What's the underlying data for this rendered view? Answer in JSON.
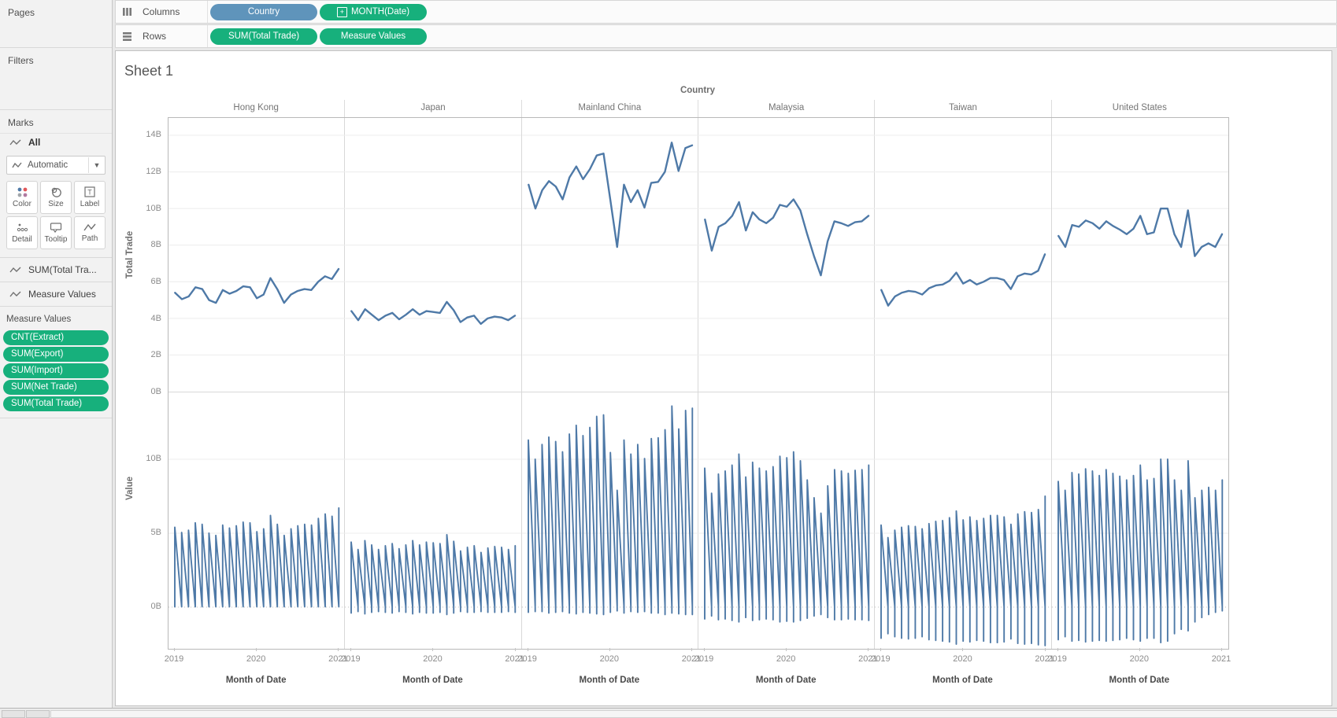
{
  "shelves": {
    "columns_label": "Columns",
    "rows_label": "Rows",
    "columns_pills": [
      {
        "label": "Country",
        "kind": "dimension"
      },
      {
        "label": "MONTH(Date)",
        "kind": "continuous-date"
      }
    ],
    "rows_pills": [
      {
        "label": "SUM(Total Trade)",
        "kind": "measure"
      },
      {
        "label": "Measure Values",
        "kind": "measure"
      }
    ]
  },
  "sidebar": {
    "pages_label": "Pages",
    "filters_label": "Filters",
    "marks": {
      "title": "Marks",
      "all_label": "All",
      "mark_type": "Automatic",
      "buttons": [
        {
          "label": "Color"
        },
        {
          "label": "Size"
        },
        {
          "label": "Label"
        },
        {
          "label": "Detail"
        },
        {
          "label": "Tooltip"
        },
        {
          "label": "Path"
        }
      ]
    },
    "layers": [
      {
        "label": "SUM(Total Tra..."
      },
      {
        "label": "Measure Values"
      }
    ],
    "measure_values": {
      "title": "Measure Values",
      "pills": [
        "CNT(Extract)",
        "SUM(Export)",
        "SUM(Import)",
        "SUM(Net Trade)",
        "SUM(Total Trade)"
      ]
    }
  },
  "sheet": {
    "title": "Sheet 1",
    "column_field_label": "Country",
    "x_axis_title": "Month of Date",
    "row_axes": [
      {
        "title": "Total Trade"
      },
      {
        "title": "Value"
      }
    ]
  },
  "chart_data": {
    "type": "line",
    "facet_field": "Country",
    "facets": [
      "Hong Kong",
      "Japan",
      "Mainland China",
      "Malaysia",
      "Taiwan",
      "United States"
    ],
    "x_field": "Month of Date",
    "x_months": [
      "2019-01",
      "2019-02",
      "2019-03",
      "2019-04",
      "2019-05",
      "2019-06",
      "2019-07",
      "2019-08",
      "2019-09",
      "2019-10",
      "2019-11",
      "2019-12",
      "2020-01",
      "2020-02",
      "2020-03",
      "2020-04",
      "2020-05",
      "2020-06",
      "2020-07",
      "2020-08",
      "2020-09",
      "2020-10",
      "2020-11",
      "2020-12",
      "2021-01"
    ],
    "x_tick_labels": [
      "2019",
      "2020",
      "2021"
    ],
    "grid": true,
    "line_color": "#4e79a7",
    "rows": [
      {
        "y_field": "SUM(Total Trade)",
        "axis_title": "Total Trade",
        "units": "B",
        "ylim": [
          0,
          14.9
        ],
        "yticks": [
          0,
          2,
          4,
          6,
          8,
          10,
          12,
          14
        ]
      },
      {
        "y_field": "Measure Values",
        "axis_title": "Value",
        "units": "B",
        "ylim": [
          -2.8,
          14.5
        ],
        "yticks": [
          0,
          5,
          10
        ],
        "measures_in_draw_order": [
          "CNT(Extract)",
          "SUM(Export)",
          "SUM(Import)",
          "SUM(Net Trade)",
          "SUM(Total Trade)"
        ],
        "derivation": "CNT(Extract) ~ 0 on billions scale; Export = (Total+Net)/2; Import = (Total-Net)/2"
      }
    ],
    "series": [
      {
        "country": "Hong Kong",
        "total_trade_B": [
          5.4,
          5.05,
          5.2,
          5.7,
          5.6,
          5.0,
          4.85,
          5.55,
          5.35,
          5.5,
          5.75,
          5.7,
          5.1,
          5.3,
          6.2,
          5.6,
          4.85,
          5.3,
          5.5,
          5.6,
          5.55,
          6.0,
          6.3,
          6.15,
          6.7
        ],
        "net_trade_B": [
          0.2,
          0.15,
          0.15,
          0.2,
          0.2,
          0.1,
          0.1,
          0.2,
          0.15,
          0.2,
          0.2,
          0.2,
          0.15,
          0.15,
          0.25,
          0.2,
          0.1,
          0.15,
          0.2,
          0.2,
          0.2,
          0.25,
          0.25,
          0.2,
          0.3
        ]
      },
      {
        "country": "Japan",
        "total_trade_B": [
          4.4,
          3.9,
          4.5,
          4.2,
          3.9,
          4.15,
          4.3,
          3.95,
          4.2,
          4.5,
          4.2,
          4.4,
          4.35,
          4.3,
          4.9,
          4.45,
          3.8,
          4.05,
          4.15,
          3.7,
          4.0,
          4.1,
          4.05,
          3.9,
          4.15
        ],
        "net_trade_B": [
          -0.4,
          -0.3,
          -0.45,
          -0.35,
          -0.3,
          -0.35,
          -0.4,
          -0.3,
          -0.35,
          -0.45,
          -0.35,
          -0.4,
          -0.4,
          -0.35,
          -0.5,
          -0.4,
          -0.3,
          -0.35,
          -0.35,
          -0.3,
          -0.35,
          -0.35,
          -0.35,
          -0.3,
          -0.35
        ]
      },
      {
        "country": "Mainland China",
        "total_trade_B": [
          11.3,
          10.0,
          11.0,
          11.5,
          11.2,
          10.5,
          11.7,
          12.3,
          11.6,
          12.15,
          12.9,
          13.0,
          10.45,
          7.9,
          11.3,
          10.35,
          11.0,
          10.05,
          11.4,
          11.45,
          12.0,
          13.6,
          12.05,
          13.3,
          13.45
        ],
        "net_trade_B": [
          -0.35,
          -0.3,
          -0.3,
          -0.4,
          -0.35,
          -0.3,
          -0.4,
          -0.45,
          -0.35,
          -0.4,
          -0.45,
          -0.5,
          -0.35,
          -0.25,
          -0.4,
          -0.3,
          -0.35,
          -0.3,
          -0.4,
          -0.4,
          -0.5,
          -0.4,
          -0.45,
          -0.5,
          -0.5
        ]
      },
      {
        "country": "Malaysia",
        "total_trade_B": [
          9.4,
          7.7,
          9.0,
          9.2,
          9.6,
          10.35,
          8.8,
          9.8,
          9.4,
          9.2,
          9.5,
          10.2,
          10.1,
          10.5,
          9.9,
          8.6,
          7.4,
          6.35,
          8.2,
          9.3,
          9.2,
          9.05,
          9.25,
          9.3,
          9.6
        ],
        "net_trade_B": [
          -0.8,
          -0.6,
          -0.85,
          -0.8,
          -0.9,
          -1.0,
          -0.7,
          -0.9,
          -0.85,
          -0.8,
          -0.85,
          -1.0,
          -0.95,
          -1.0,
          -0.9,
          -0.75,
          -0.6,
          -0.5,
          -0.7,
          -0.85,
          -0.85,
          -0.8,
          -0.85,
          -0.85,
          -0.9
        ]
      },
      {
        "country": "Taiwan",
        "total_trade_B": [
          5.55,
          4.7,
          5.2,
          5.4,
          5.5,
          5.45,
          5.3,
          5.65,
          5.8,
          5.85,
          6.05,
          6.5,
          5.9,
          6.1,
          5.85,
          6.0,
          6.2,
          6.2,
          6.1,
          5.6,
          6.3,
          6.45,
          6.4,
          6.6,
          7.5
        ],
        "net_trade_B": [
          -2.1,
          -1.8,
          -2.0,
          -2.1,
          -2.15,
          -2.1,
          -2.0,
          -2.2,
          -2.25,
          -2.3,
          -2.35,
          -2.5,
          -2.3,
          -2.35,
          -2.25,
          -2.3,
          -2.4,
          -2.4,
          -2.35,
          -2.15,
          -2.45,
          -2.5,
          -2.45,
          -2.55,
          -2.6
        ]
      },
      {
        "country": "United States",
        "total_trade_B": [
          8.5,
          7.9,
          9.1,
          9.0,
          9.35,
          9.2,
          8.9,
          9.3,
          9.05,
          8.85,
          8.6,
          8.9,
          9.6,
          8.6,
          8.7,
          10.0,
          10.0,
          8.6,
          7.9,
          9.9,
          7.4,
          7.9,
          8.1,
          7.9,
          8.6
        ],
        "net_trade_B": [
          -2.2,
          -2.0,
          -2.3,
          -2.25,
          -2.35,
          -2.3,
          -2.25,
          -2.3,
          -2.25,
          -2.2,
          -2.1,
          -2.2,
          -2.3,
          -2.1,
          -2.1,
          -2.4,
          -2.3,
          -1.8,
          -1.5,
          -1.6,
          -1.0,
          -0.7,
          -0.5,
          -0.35,
          -0.25
        ]
      }
    ]
  }
}
